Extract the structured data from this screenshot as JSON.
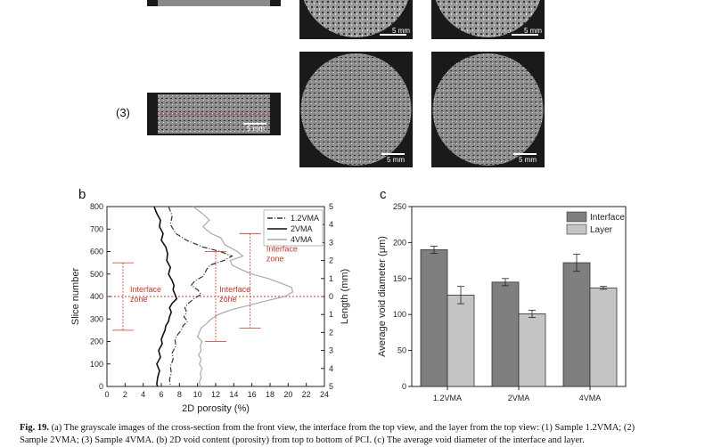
{
  "figure": {
    "row_label": "(3)",
    "scale_bar_text": "5 mm",
    "panel_b_label": "b",
    "panel_c_label": "c",
    "caption_bold": "Fig. 19.",
    "caption_text": " (a) The grayscale images of the cross-section from the front view, the interface from the top view, and the layer from the top view: (1) Sample 1.2VMA; (2)",
    "caption_line2": "Sample 2VMA; (3) Sample 4VMA. (b) 2D void content (porosity) from top to bottom of PCI. (c) The average void diameter of the interface and layer."
  },
  "chart_data": [
    {
      "type": "line",
      "xlabel": "2D porosity (%)",
      "ylabel": "Slice number",
      "y2label": "Length (mm)",
      "xlim": [
        0,
        24
      ],
      "ylim": [
        0,
        800
      ],
      "y2lim": [
        5,
        -5
      ],
      "xticks": [
        0,
        2,
        4,
        6,
        8,
        10,
        12,
        14,
        16,
        18,
        20,
        22,
        24
      ],
      "yticks": [
        0,
        100,
        200,
        300,
        400,
        500,
        600,
        700,
        800
      ],
      "y2ticks": [
        5,
        4,
        3,
        2,
        1,
        0,
        1,
        2,
        3,
        4,
        5
      ],
      "legend_position": "top-right",
      "series": [
        {
          "name": "1.2VMA",
          "style": "dash-dot",
          "color": "#333333",
          "points": [
            [
              6.8,
              800
            ],
            [
              7.2,
              760
            ],
            [
              7.0,
              720
            ],
            [
              7.6,
              680
            ],
            [
              8.8,
              650
            ],
            [
              10.6,
              620
            ],
            [
              12.5,
              600
            ],
            [
              13.8,
              580
            ],
            [
              12.9,
              560
            ],
            [
              11.4,
              540
            ],
            [
              11.0,
              520
            ],
            [
              10.6,
              490
            ],
            [
              9.7,
              470
            ],
            [
              9.3,
              450
            ],
            [
              10.0,
              430
            ],
            [
              10.4,
              410
            ],
            [
              9.6,
              390
            ],
            [
              9.0,
              370
            ],
            [
              8.6,
              350
            ],
            [
              8.8,
              330
            ],
            [
              8.5,
              310
            ],
            [
              8.9,
              290
            ],
            [
              8.4,
              270
            ],
            [
              8.2,
              250
            ],
            [
              7.8,
              230
            ],
            [
              7.5,
              210
            ],
            [
              7.6,
              180
            ],
            [
              7.2,
              150
            ],
            [
              7.3,
              120
            ],
            [
              7.0,
              90
            ],
            [
              7.1,
              60
            ],
            [
              6.9,
              30
            ],
            [
              7.0,
              0
            ]
          ]
        },
        {
          "name": "2VMA",
          "style": "solid",
          "color": "#111111",
          "points": [
            [
              5.2,
              800
            ],
            [
              5.5,
              770
            ],
            [
              5.9,
              740
            ],
            [
              5.8,
              710
            ],
            [
              6.2,
              680
            ],
            [
              6.0,
              650
            ],
            [
              6.5,
              620
            ],
            [
              6.7,
              590
            ],
            [
              6.6,
              560
            ],
            [
              7.0,
              530
            ],
            [
              6.8,
              500
            ],
            [
              7.2,
              470
            ],
            [
              7.4,
              450
            ],
            [
              7.3,
              430
            ],
            [
              7.5,
              410
            ],
            [
              7.7,
              390
            ],
            [
              7.2,
              370
            ],
            [
              6.9,
              350
            ],
            [
              7.1,
              330
            ],
            [
              6.9,
              310
            ],
            [
              6.8,
              290
            ],
            [
              6.5,
              270
            ],
            [
              6.4,
              250
            ],
            [
              6.2,
              230
            ],
            [
              6.0,
              210
            ],
            [
              6.1,
              190
            ],
            [
              5.7,
              160
            ],
            [
              5.9,
              130
            ],
            [
              5.5,
              100
            ],
            [
              5.8,
              70
            ],
            [
              5.6,
              40
            ],
            [
              5.5,
              10
            ],
            [
              5.6,
              0
            ]
          ]
        },
        {
          "name": "4VMA",
          "style": "solid",
          "color": "#aaaaaa",
          "points": [
            [
              9.5,
              800
            ],
            [
              10.5,
              770
            ],
            [
              11.3,
              740
            ],
            [
              10.6,
              710
            ],
            [
              11.5,
              680
            ],
            [
              12.6,
              660
            ],
            [
              13.0,
              630
            ],
            [
              14.4,
              600
            ],
            [
              15.0,
              580
            ],
            [
              13.6,
              560
            ],
            [
              13.8,
              540
            ],
            [
              14.8,
              520
            ],
            [
              16.0,
              500
            ],
            [
              17.8,
              480
            ],
            [
              19.2,
              460
            ],
            [
              20.4,
              440
            ],
            [
              20.5,
              420
            ],
            [
              19.6,
              400
            ],
            [
              17.5,
              380
            ],
            [
              15.6,
              360
            ],
            [
              13.6,
              340
            ],
            [
              12.3,
              320
            ],
            [
              11.5,
              300
            ],
            [
              11.0,
              280
            ],
            [
              10.4,
              260
            ],
            [
              10.2,
              240
            ],
            [
              10.0,
              220
            ],
            [
              10.5,
              200
            ],
            [
              10.3,
              180
            ],
            [
              10.4,
              160
            ],
            [
              10.1,
              140
            ],
            [
              10.4,
              120
            ],
            [
              10.2,
              100
            ],
            [
              10.5,
              80
            ],
            [
              10.3,
              60
            ],
            [
              10.4,
              40
            ],
            [
              10.2,
              20
            ],
            [
              10.3,
              0
            ]
          ]
        }
      ],
      "reference_line": {
        "y": 400,
        "style": "dotted",
        "color": "#c0392b"
      },
      "annotations": [
        {
          "text": "Interface\nzone",
          "at": [
            3.0,
            400
          ],
          "span_y": [
            250,
            550
          ],
          "color": "#c0392b"
        },
        {
          "text": "Interface\nzone",
          "at": [
            13.5,
            400
          ],
          "span_y": [
            200,
            600
          ],
          "color": "#c0392b"
        },
        {
          "text": "Interface\nzone",
          "at": [
            17.6,
            570
          ],
          "span_y": [
            260,
            680
          ],
          "color": "#c0392b"
        }
      ]
    },
    {
      "type": "bar",
      "ylabel": "Average void diameter (μm)",
      "ylim": [
        0,
        250
      ],
      "yticks": [
        0,
        50,
        100,
        150,
        200,
        250
      ],
      "categories": [
        "1.2VMA",
        "2VMA",
        "4VMA"
      ],
      "legend_position": "top-right",
      "series": [
        {
          "name": "Interface",
          "color": "#7f7f7f",
          "values": [
            190,
            145,
            172
          ],
          "errors": [
            5,
            5,
            12
          ]
        },
        {
          "name": "Layer",
          "color": "#c4c4c4",
          "values": [
            127,
            101,
            137
          ],
          "errors": [
            12,
            5,
            2
          ]
        }
      ]
    }
  ]
}
